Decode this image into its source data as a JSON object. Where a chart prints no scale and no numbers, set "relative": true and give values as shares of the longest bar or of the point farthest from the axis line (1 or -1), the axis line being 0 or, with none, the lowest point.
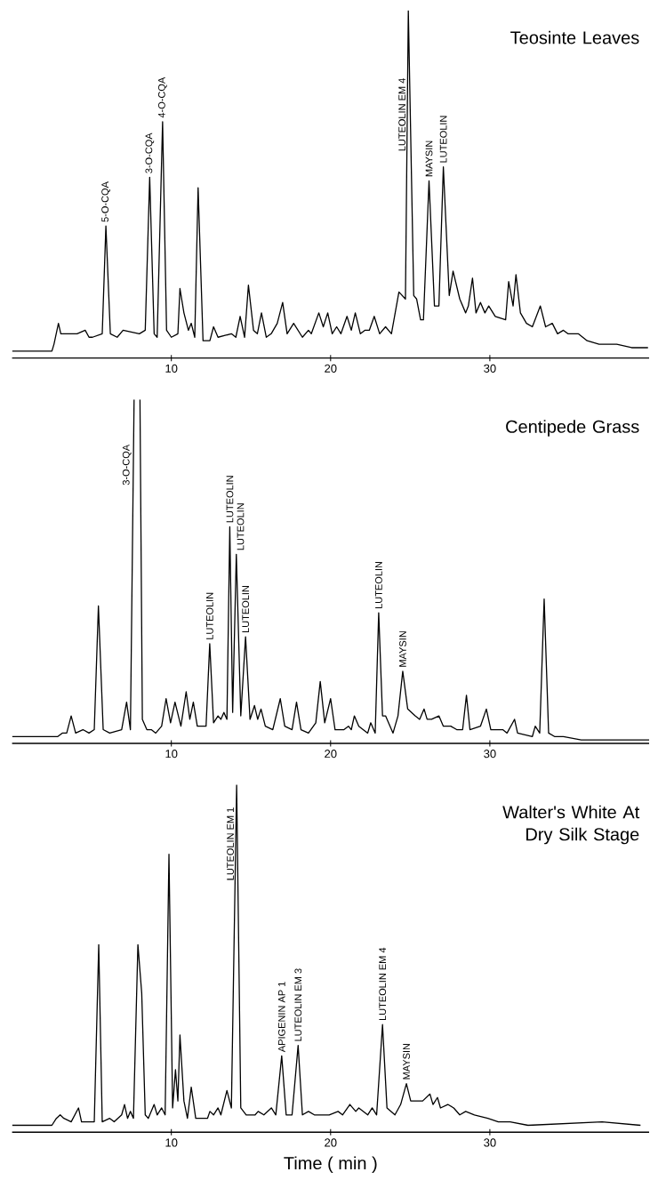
{
  "chart_data": [
    {
      "type": "line",
      "title": "Teosinte Leaves",
      "relative": true,
      "xlim": [
        0,
        40
      ],
      "xticks": [
        10,
        20,
        30
      ],
      "x": [
        0,
        2.5,
        2.63,
        2.91,
        3.06,
        4.08,
        4.59,
        4.83,
        5.05,
        5.66,
        5.89,
        6.17,
        6.6,
        6.97,
        7.99,
        8.36,
        8.64,
        8.92,
        9.11,
        9.45,
        9.7,
        10.0,
        10.41,
        10.54,
        10.79,
        11.07,
        11.25,
        11.47,
        11.68,
        11.99,
        12.42,
        12.65,
        12.93,
        13.77,
        14.05,
        14.32,
        14.6,
        14.84,
        15.16,
        15.4,
        15.66,
        15.96,
        16.27,
        16.65,
        16.99,
        17.27,
        17.68,
        18.23,
        18.61,
        18.79,
        19.26,
        19.54,
        19.82,
        20.1,
        20.38,
        20.65,
        21.03,
        21.3,
        21.55,
        21.87,
        22.15,
        22.43,
        22.74,
        23.08,
        23.45,
        23.82,
        24.29,
        24.7,
        24.88,
        25.22,
        25.4,
        25.65,
        25.83,
        26.18,
        26.52,
        26.8,
        27.08,
        27.45,
        27.69,
        28.11,
        28.48,
        28.65,
        28.91,
        29.13,
        29.41,
        29.69,
        29.93,
        30.34,
        30.99,
        31.18,
        31.46,
        31.64,
        31.92,
        32.3,
        32.67,
        33.17,
        33.5,
        33.92,
        34.25,
        34.62,
        34.9,
        35.55,
        36.11,
        36.86,
        37.97,
        38.9,
        39.93
      ],
      "series": [
        {
          "color": "#000000",
          "values": [
            0.02,
            0.02,
            0.04,
            0.1,
            0.07,
            0.07,
            0.08,
            0.06,
            0.06,
            0.07,
            0.38,
            0.07,
            0.06,
            0.08,
            0.07,
            0.08,
            0.52,
            0.07,
            0.06,
            0.68,
            0.08,
            0.06,
            0.07,
            0.2,
            0.13,
            0.08,
            0.1,
            0.06,
            0.49,
            0.05,
            0.05,
            0.09,
            0.06,
            0.07,
            0.06,
            0.12,
            0.06,
            0.21,
            0.08,
            0.07,
            0.13,
            0.06,
            0.07,
            0.1,
            0.16,
            0.07,
            0.1,
            0.06,
            0.08,
            0.07,
            0.13,
            0.09,
            0.13,
            0.07,
            0.09,
            0.07,
            0.12,
            0.08,
            0.13,
            0.07,
            0.08,
            0.08,
            0.12,
            0.07,
            0.09,
            0.07,
            0.19,
            0.17,
            1.0,
            0.18,
            0.17,
            0.11,
            0.11,
            0.51,
            0.15,
            0.15,
            0.55,
            0.18,
            0.25,
            0.17,
            0.13,
            0.15,
            0.23,
            0.13,
            0.16,
            0.13,
            0.15,
            0.12,
            0.11,
            0.22,
            0.15,
            0.24,
            0.13,
            0.1,
            0.09,
            0.15,
            0.09,
            0.1,
            0.07,
            0.08,
            0.07,
            0.07,
            0.05,
            0.04,
            0.04,
            0.03,
            0.03
          ]
        }
      ],
      "annotations": [
        {
          "text": "5-O-CQA",
          "x": 5.89,
          "y": 0.38
        },
        {
          "text": "3-O-CQA",
          "x": 8.64,
          "y": 0.52
        },
        {
          "text": "4-O-CQA",
          "x": 9.45,
          "y": 0.68
        },
        {
          "text": "LUTEOLIN  EM 4",
          "x": 24.88,
          "y": 0.7
        },
        {
          "text": "MAYSIN",
          "x": 26.18,
          "y": 0.51
        },
        {
          "text": "LUTEOLIN",
          "x": 27.08,
          "y": 0.55
        }
      ]
    },
    {
      "type": "line",
      "title": "Centipede Grass",
      "relative": true,
      "xlim": [
        0,
        40
      ],
      "xticks": [
        10,
        20,
        30
      ],
      "x": [
        0,
        2.87,
        3.15,
        3.43,
        3.71,
        3.99,
        4.45,
        4.83,
        5.16,
        5.42,
        5.72,
        6.13,
        6.88,
        7.19,
        7.43,
        7.66,
        7.84,
        8.03,
        8.18,
        8.46,
        8.74,
        9.02,
        9.39,
        9.67,
        9.95,
        10.23,
        10.6,
        10.93,
        11.16,
        11.38,
        11.63,
        12.18,
        12.41,
        12.65,
        12.93,
        13.11,
        13.3,
        13.49,
        13.67,
        13.85,
        14.08,
        14.36,
        14.66,
        14.94,
        15.22,
        15.42,
        15.63,
        15.9,
        16.37,
        16.84,
        17.12,
        17.58,
        17.86,
        18.14,
        18.61,
        19.07,
        19.35,
        19.63,
        20.0,
        20.28,
        20.84,
        21.12,
        21.3,
        21.49,
        21.77,
        22.33,
        22.52,
        22.8,
        23.02,
        23.26,
        23.45,
        23.92,
        24.23,
        24.53,
        24.84,
        25.31,
        25.59,
        25.87,
        26.06,
        26.34,
        26.8,
        27.08,
        27.55,
        27.92,
        28.29,
        28.53,
        28.75,
        29.41,
        29.78,
        30.06,
        30.53,
        30.81,
        31.08,
        31.55,
        31.74,
        32.67,
        32.85,
        33.13,
        33.41,
        33.69,
        34.06,
        34.62,
        35.74,
        40
      ],
      "series": [
        {
          "color": "#000000",
          "values": [
            0.02,
            0.02,
            0.03,
            0.03,
            0.08,
            0.03,
            0.04,
            0.03,
            0.04,
            0.4,
            0.04,
            0.03,
            0.04,
            0.12,
            0.04,
            1.0,
            null,
            1.0,
            0.07,
            0.04,
            0.04,
            0.03,
            0.05,
            0.13,
            0.06,
            0.12,
            0.05,
            0.15,
            0.07,
            0.12,
            0.05,
            0.05,
            0.29,
            0.06,
            0.08,
            0.07,
            0.09,
            0.07,
            0.63,
            0.09,
            0.55,
            0.08,
            0.31,
            0.07,
            0.11,
            0.07,
            0.1,
            0.05,
            0.04,
            0.13,
            0.05,
            0.04,
            0.12,
            0.04,
            0.03,
            0.06,
            0.18,
            0.06,
            0.13,
            0.04,
            0.04,
            0.05,
            0.04,
            0.08,
            0.05,
            0.03,
            0.06,
            0.03,
            0.38,
            0.08,
            0.08,
            0.03,
            0.08,
            0.21,
            0.1,
            0.08,
            0.07,
            0.1,
            0.07,
            0.07,
            0.08,
            0.05,
            0.05,
            0.04,
            0.04,
            0.14,
            0.04,
            0.05,
            0.1,
            0.04,
            0.04,
            0.04,
            0.03,
            0.07,
            0.03,
            0.02,
            0.05,
            0.03,
            0.42,
            0.03,
            0.02,
            0.02,
            0.01,
            0.01
          ]
        }
      ],
      "annotations": [
        {
          "text": "3-O-CQA",
          "x": 7.66,
          "y": 0.81
        },
        {
          "text": "LUTEOLIN",
          "x": 12.41,
          "y": 0.29
        },
        {
          "text": "LUTEOLIN",
          "x": 13.67,
          "y": 0.63
        },
        {
          "text": "LUTEOLIN",
          "x": 14.08,
          "y": 0.55
        },
        {
          "text": "LUTEOLIN",
          "x": 14.66,
          "y": 0.31
        },
        {
          "text": "LUTEOLIN",
          "x": 23.02,
          "y": 0.38
        },
        {
          "text": "MAYSIN",
          "x": 24.53,
          "y": 0.21
        }
      ]
    },
    {
      "type": "line",
      "title": "Walter's White At Dry Silk Stage",
      "xlabel": "Time ( min )",
      "relative": true,
      "xlim": [
        0,
        40
      ],
      "xticks": [
        10,
        20,
        30
      ],
      "x": [
        0,
        2.5,
        2.78,
        3.02,
        3.25,
        3.71,
        4.17,
        4.36,
        4.83,
        5.16,
        5.44,
        5.66,
        6.13,
        6.41,
        6.88,
        7.06,
        7.25,
        7.43,
        7.62,
        7.9,
        8.14,
        8.36,
        8.55,
        8.92,
        9.11,
        9.39,
        9.61,
        9.85,
        10.08,
        10.26,
        10.41,
        10.54,
        10.79,
        11.01,
        11.25,
        11.53,
        12.27,
        12.42,
        12.65,
        12.93,
        13.11,
        13.49,
        13.77,
        14.1,
        14.36,
        14.7,
        15.26,
        15.45,
        15.81,
        16.28,
        16.56,
        16.93,
        17.21,
        17.58,
        17.96,
        18.23,
        18.61,
        18.98,
        19.91,
        20.47,
        20.75,
        21.21,
        21.58,
        21.77,
        22.33,
        22.61,
        22.89,
        23.26,
        23.54,
        24.04,
        24.4,
        24.76,
        25.03,
        25.78,
        26.24,
        26.43,
        26.71,
        26.9,
        27.36,
        27.73,
        28.11,
        28.48,
        29.03,
        29.87,
        30.53,
        31.27,
        32.4,
        37.05,
        39.46
      ],
      "series": [
        {
          "color": "#000000",
          "values": [
            0.02,
            0.02,
            0.04,
            0.05,
            0.04,
            0.03,
            0.07,
            0.03,
            0.03,
            0.03,
            0.54,
            0.03,
            0.04,
            0.03,
            0.05,
            0.08,
            0.04,
            0.06,
            0.04,
            0.54,
            0.4,
            0.05,
            0.04,
            0.08,
            0.05,
            0.07,
            0.05,
            0.8,
            0.07,
            0.18,
            0.09,
            0.28,
            0.09,
            0.04,
            0.13,
            0.04,
            0.04,
            0.06,
            0.05,
            0.07,
            0.05,
            0.12,
            0.07,
            1.0,
            0.07,
            0.05,
            0.05,
            0.06,
            0.05,
            0.07,
            0.05,
            0.22,
            0.05,
            0.05,
            0.25,
            0.05,
            0.06,
            0.05,
            0.05,
            0.06,
            0.05,
            0.08,
            0.06,
            0.07,
            0.05,
            0.07,
            0.05,
            0.31,
            0.07,
            0.05,
            0.08,
            0.14,
            0.09,
            0.09,
            0.11,
            0.08,
            0.1,
            0.07,
            0.08,
            0.07,
            0.05,
            0.06,
            0.05,
            0.04,
            0.03,
            0.03,
            0.02,
            0.03,
            0.02
          ]
        }
      ],
      "annotations": [
        {
          "text": "LUTEOLIN EM 1",
          "x": 14.1,
          "y": 0.83
        },
        {
          "text": "APIGENIN AP 1",
          "x": 16.93,
          "y": 0.22
        },
        {
          "text": "LUTEOLIN EM 3",
          "x": 17.96,
          "y": 0.25
        },
        {
          "text": "LUTEOLIN EM 4",
          "x": 23.26,
          "y": 0.31
        },
        {
          "text": "MAYSIN",
          "x": 24.76,
          "y": 0.14
        }
      ]
    }
  ]
}
